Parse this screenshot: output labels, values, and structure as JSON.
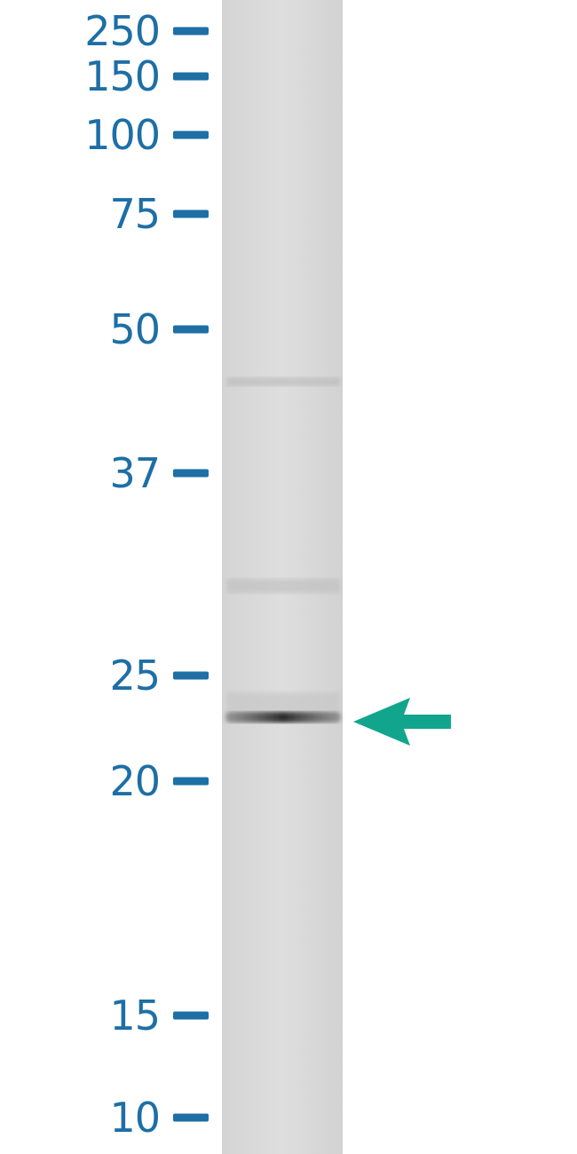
{
  "markers": [
    {
      "label": "250"
    },
    {
      "label": "150"
    },
    {
      "label": "100"
    },
    {
      "label": "75"
    },
    {
      "label": "50"
    },
    {
      "label": "37"
    },
    {
      "label": "25"
    },
    {
      "label": "20"
    },
    {
      "label": "15"
    },
    {
      "label": "10"
    }
  ]
}
